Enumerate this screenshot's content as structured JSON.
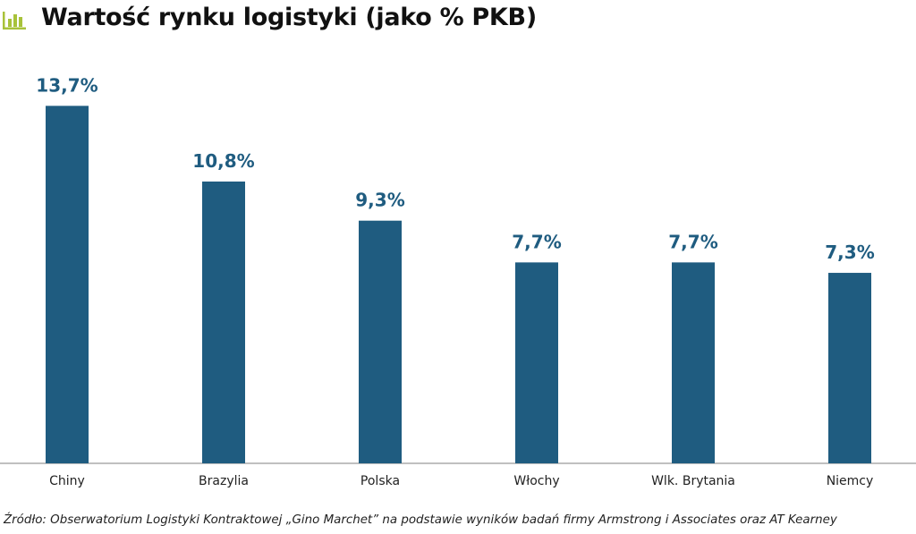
{
  "header": {
    "title": "Wartość rynku logistyki (jako % PKB)",
    "icon": "bar-chart-icon",
    "icon_color": "#a8c23a"
  },
  "chart_data": {
    "type": "bar",
    "title": "Wartość rynku logistyki (jako % PKB)",
    "xlabel": "",
    "ylabel": "",
    "categories": [
      "Chiny",
      "Brazylia",
      "Polska",
      "Włochy",
      "Wlk. Brytania",
      "Niemcy"
    ],
    "values": [
      13.7,
      10.8,
      9.3,
      7.7,
      7.7,
      7.3
    ],
    "value_labels": [
      "13,7%",
      "10,8%",
      "9,3%",
      "7,7%",
      "7,7%",
      "7,3%"
    ],
    "unit": "%",
    "ylim": [
      0,
      14.5
    ],
    "grid": false,
    "legend": "none",
    "bar_color": "#1f5c80",
    "label_color": "#1f5c80"
  },
  "footer": {
    "source": "Źródło: Obserwatorium Logistyki Kontraktowej „Gino Marchet” na podstawie wyników badań firmy Armstrong i Associates oraz AT Kearney"
  }
}
